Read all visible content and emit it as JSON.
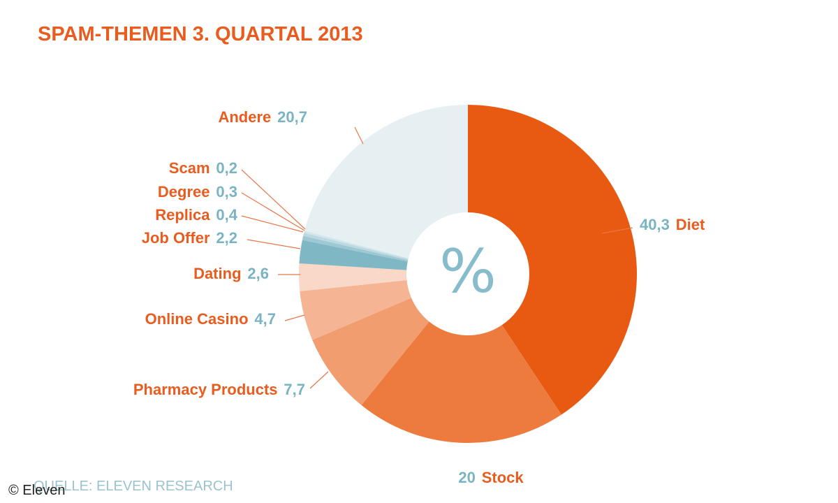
{
  "title": "SPAM-THEMEN 3. QUARTAL 2013",
  "center_symbol": "%",
  "source": "QUELLE: ELEVEN RESEARCH",
  "watermark": "© Eleven",
  "colors": {
    "title": "#e85d1f",
    "label_name": "#e85d1f",
    "label_value": "#7ab3c1",
    "center_symbol": "#86bccb",
    "leader": "#e8774a"
  },
  "chart_data": {
    "type": "pie",
    "title": "SPAM-THEMEN 3. QUARTAL 2013",
    "unit": "%",
    "slices": [
      {
        "name": "Diet",
        "value_label": "40,3",
        "value": 40.3,
        "color": "#e85a12"
      },
      {
        "name": "Stock",
        "value_label": "20",
        "value": 20.0,
        "color": "#ee7b3e"
      },
      {
        "name": "Pharmacy Products",
        "value_label": "7,7",
        "value": 7.7,
        "color": "#f19d70"
      },
      {
        "name": "Online Casino",
        "value_label": "4,7",
        "value": 4.7,
        "color": "#f5b595"
      },
      {
        "name": "Dating",
        "value_label": "2,6",
        "value": 2.6,
        "color": "#f9d8c7"
      },
      {
        "name": "Job Offer",
        "value_label": "2,2",
        "value": 2.2,
        "color": "#7fb7c5"
      },
      {
        "name": "Replica",
        "value_label": "0,4",
        "value": 0.4,
        "color": "#9ec8d3"
      },
      {
        "name": "Degree",
        "value_label": "0,3",
        "value": 0.3,
        "color": "#bcd9e1"
      },
      {
        "name": "Scam",
        "value_label": "0,2",
        "value": 0.2,
        "color": "#d2e6ec"
      },
      {
        "name": "Andere",
        "value_label": "20,7",
        "value": 20.7,
        "color": "#e6f0f3"
      }
    ]
  }
}
